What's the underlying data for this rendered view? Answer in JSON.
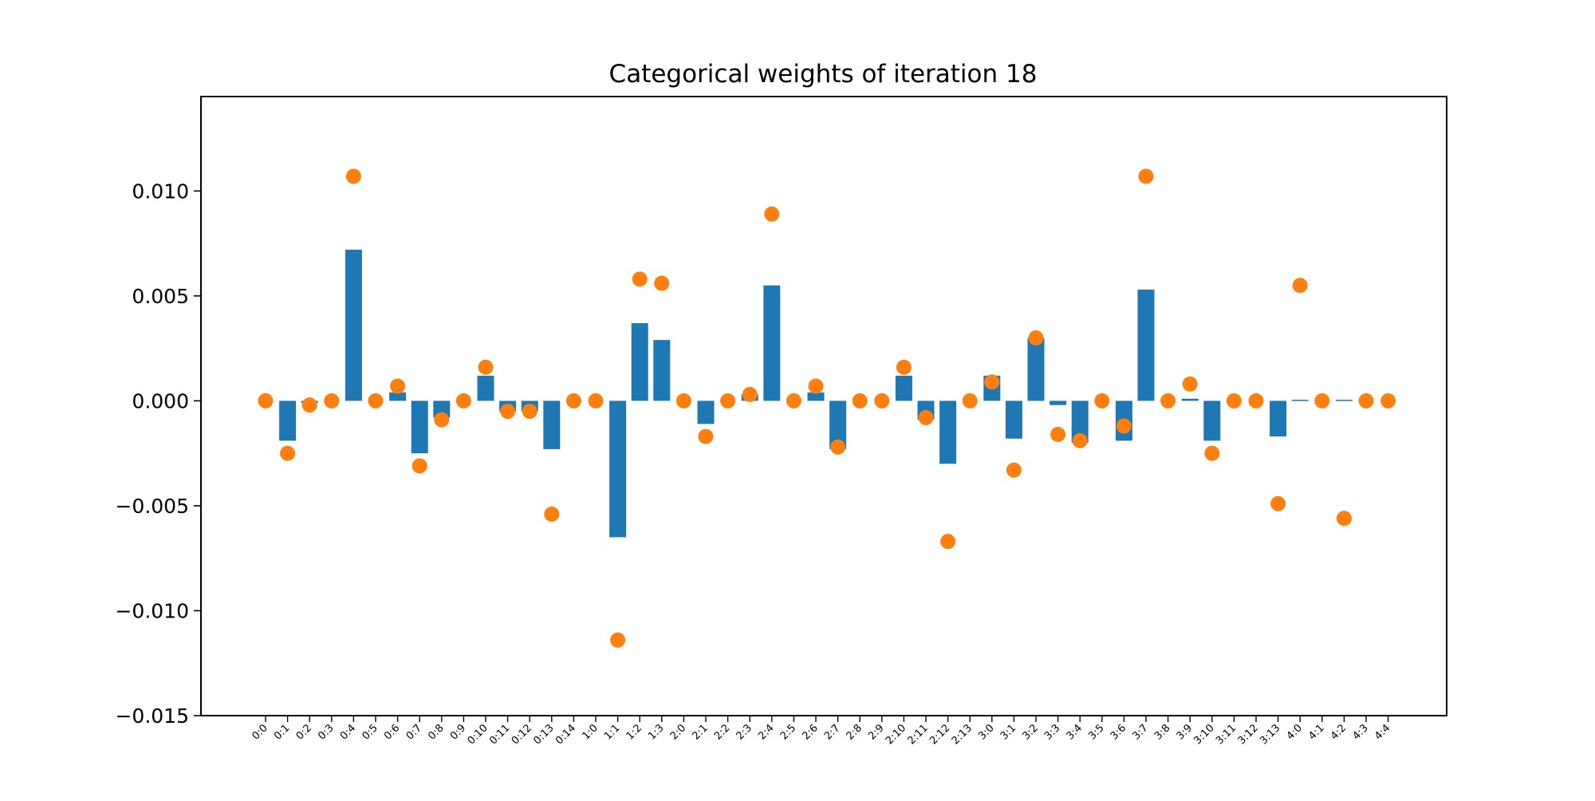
{
  "chart_data": {
    "type": "bar",
    "title": "Categorical weights of iteration 18",
    "xlabel": "",
    "ylabel": "",
    "ylim": [
      -0.015,
      0.0145
    ],
    "yticks": [
      0.01,
      0.005,
      0.0,
      -0.005,
      -0.01,
      -0.015
    ],
    "ytick_labels": [
      "0.010",
      "0.005",
      "0.000",
      "−0.005",
      "−0.010",
      "−0.015"
    ],
    "grid": false,
    "categories": [
      "0:0",
      "0:1",
      "0:2",
      "0:3",
      "0:4",
      "0:5",
      "0:6",
      "0:7",
      "0:8",
      "0:9",
      "0:10",
      "0:11",
      "0:12",
      "0:13",
      "0:14",
      "1:0",
      "1:1",
      "1:2",
      "1:3",
      "2:0",
      "2:1",
      "2:2",
      "2:3",
      "2:4",
      "2:5",
      "2:6",
      "2:7",
      "2:8",
      "2:9",
      "2:10",
      "2:11",
      "2:12",
      "2:13",
      "3:0",
      "3:1",
      "3:2",
      "3:3",
      "3:4",
      "3:5",
      "3:6",
      "3:7",
      "3:8",
      "3:9",
      "3:10",
      "3:11",
      "3:12",
      "3:13",
      "4:0",
      "4:1",
      "4:2",
      "4:3",
      "4:4"
    ],
    "series": [
      {
        "type": "bar",
        "color": "#1f77b4",
        "values": [
          0.0,
          -0.0019,
          -0.0001,
          0.0,
          0.0072,
          0.0,
          0.0004,
          -0.0025,
          -0.0008,
          0.0,
          0.0012,
          -0.0005,
          -0.0005,
          -0.0023,
          0.0,
          0.0,
          -0.0065,
          0.0037,
          0.0029,
          0.0,
          -0.0011,
          0.0,
          0.0003,
          0.0055,
          0.0,
          0.0004,
          -0.0023,
          0.0,
          0.0,
          0.0012,
          -0.0009,
          -0.003,
          0.0,
          0.0012,
          -0.0018,
          0.003,
          -0.0002,
          -0.002,
          0.0,
          -0.0019,
          0.0053,
          0.0,
          0.0001,
          -0.0019,
          0.0,
          0.0,
          -0.0017,
          5e-05,
          0.0,
          5e-05,
          0.0,
          0.0
        ]
      },
      {
        "type": "scatter",
        "color": "#ff7f0e",
        "values": [
          0.0,
          -0.0025,
          -0.0002,
          0.0,
          0.0107,
          0.0,
          0.0007,
          -0.0031,
          -0.0009,
          0.0,
          0.0016,
          -0.0005,
          -0.0005,
          -0.0054,
          0.0,
          0.0,
          -0.0114,
          0.0058,
          0.0056,
          0.0,
          -0.0017,
          0.0,
          0.0003,
          0.0089,
          0.0,
          0.0007,
          -0.0022,
          0.0,
          0.0,
          0.0016,
          -0.0008,
          -0.0067,
          0.0,
          0.0009,
          -0.0033,
          0.003,
          -0.0016,
          -0.0019,
          0.0,
          -0.0012,
          0.0107,
          0.0,
          0.0008,
          -0.0025,
          0.0,
          0.0,
          -0.0049,
          0.0055,
          0.0,
          -0.0056,
          0.0,
          0.0
        ]
      }
    ]
  }
}
